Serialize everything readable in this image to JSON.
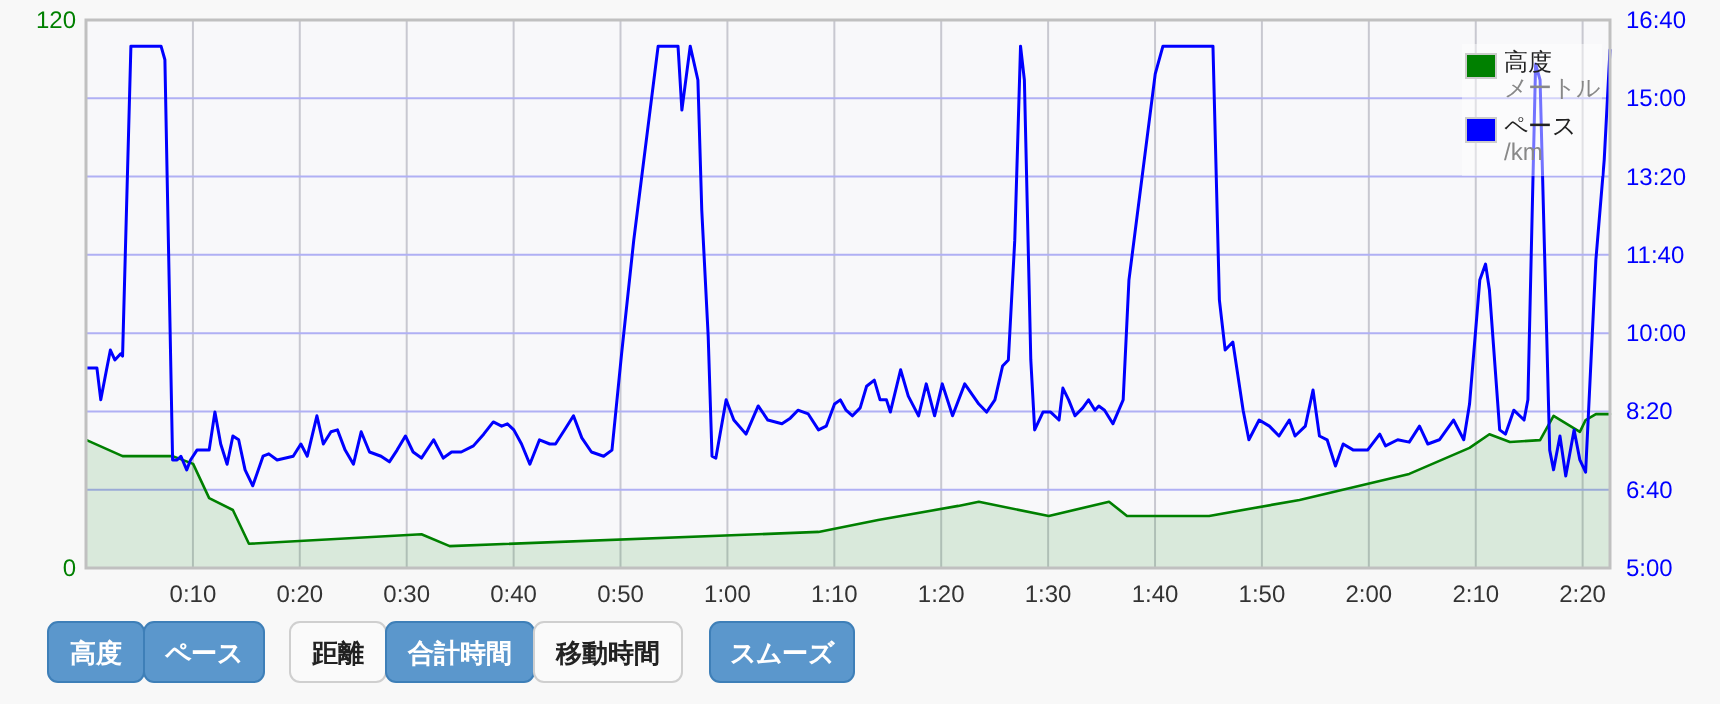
{
  "chart_data": {
    "type": "line",
    "series": [
      {
        "name": "高度",
        "type": "area",
        "color": "#008000",
        "x": [
          0.001,
          0.057,
          0.135,
          0.167,
          0.192,
          0.229,
          0.254,
          0.523,
          0.567,
          1.142,
          1.235,
          1.36,
          1.392,
          1.501,
          1.595,
          1.623,
          1.751,
          1.892,
          2.063,
          2.157,
          2.188,
          2.22,
          2.267,
          2.288,
          2.329,
          2.338,
          2.354,
          2.376
        ],
        "values": [
          28.0,
          24.5,
          24.5,
          22.8,
          15.3,
          12.7,
          5.3,
          7.4,
          4.8,
          7.9,
          10.5,
          13.6,
          14.5,
          11.4,
          14.5,
          11.4,
          11.4,
          14.9,
          20.6,
          26.3,
          29.3,
          27.6,
          28.0,
          33.3,
          29.8,
          32.4,
          33.7,
          33.7
        ]
      },
      {
        "name": "ペース",
        "type": "line",
        "color": "#0000ff",
        "axis": "y2",
        "x": [
          0.001,
          0.017,
          0.023,
          0.032,
          0.038,
          0.045,
          0.054,
          0.057,
          0.07,
          0.117,
          0.123,
          0.135,
          0.142,
          0.148,
          0.157,
          0.163,
          0.173,
          0.182,
          0.192,
          0.201,
          0.21,
          0.22,
          0.229,
          0.238,
          0.248,
          0.26,
          0.276,
          0.285,
          0.298,
          0.323,
          0.335,
          0.345,
          0.36,
          0.37,
          0.382,
          0.392,
          0.404,
          0.417,
          0.429,
          0.442,
          0.46,
          0.473,
          0.485,
          0.498,
          0.51,
          0.523,
          0.542,
          0.557,
          0.57,
          0.585,
          0.604,
          0.62,
          0.635,
          0.648,
          0.657,
          0.667,
          0.679,
          0.692,
          0.707,
          0.723,
          0.732,
          0.748,
          0.76,
          0.773,
          0.788,
          0.807,
          0.82,
          0.835,
          0.854,
          0.892,
          0.923,
          0.929,
          0.942,
          0.954,
          0.96,
          0.97,
          0.976,
          0.982,
          0.998,
          1.01,
          1.029,
          1.048,
          1.063,
          1.085,
          1.098,
          1.11,
          1.126,
          1.142,
          1.154,
          1.167,
          1.176,
          1.185,
          1.195,
          1.207,
          1.217,
          1.229,
          1.238,
          1.248,
          1.254,
          1.27,
          1.282,
          1.298,
          1.31,
          1.323,
          1.335,
          1.351,
          1.37,
          1.392,
          1.404,
          1.417,
          1.429,
          1.438,
          1.448,
          1.457,
          1.463,
          1.473,
          1.479,
          1.492,
          1.504,
          1.517,
          1.523,
          1.532,
          1.542,
          1.554,
          1.563,
          1.573,
          1.579,
          1.588,
          1.601,
          1.617,
          1.626,
          1.667,
          1.679,
          1.757,
          1.767,
          1.776,
          1.788,
          1.804,
          1.813,
          1.829,
          1.845,
          1.86,
          1.876,
          1.885,
          1.901,
          1.913,
          1.923,
          1.935,
          1.948,
          1.96,
          1.976,
          1.998,
          2.017,
          2.026,
          2.045,
          2.063,
          2.079,
          2.092,
          2.11,
          2.132,
          2.148,
          2.157,
          2.173,
          2.182,
          2.188,
          2.204,
          2.213,
          2.226,
          2.242,
          2.248,
          2.26,
          2.267,
          2.282,
          2.288,
          2.298,
          2.307,
          2.32,
          2.329,
          2.338,
          2.354,
          2.367,
          2.376
        ],
        "values": [
          9.26,
          9.26,
          8.58,
          9.22,
          9.64,
          9.43,
          9.56,
          9.51,
          16.11,
          16.11,
          15.82,
          7.3,
          7.3,
          7.38,
          7.09,
          7.3,
          7.51,
          7.51,
          7.51,
          8.32,
          7.64,
          7.21,
          7.81,
          7.73,
          7.09,
          6.75,
          7.38,
          7.43,
          7.3,
          7.38,
          7.64,
          7.38,
          8.24,
          7.64,
          7.9,
          7.94,
          7.51,
          7.21,
          7.9,
          7.47,
          7.38,
          7.26,
          7.51,
          7.81,
          7.47,
          7.34,
          7.73,
          7.34,
          7.47,
          7.47,
          7.6,
          7.85,
          8.11,
          8.02,
          8.07,
          7.94,
          7.64,
          7.21,
          7.73,
          7.64,
          7.64,
          7.98,
          8.24,
          7.77,
          7.47,
          7.38,
          7.51,
          9.56,
          11.98,
          16.11,
          16.11,
          14.75,
          16.11,
          15.39,
          12.62,
          9.94,
          7.38,
          7.34,
          8.58,
          8.15,
          7.85,
          8.45,
          8.15,
          8.07,
          8.19,
          8.36,
          8.28,
          7.94,
          8.02,
          8.49,
          8.58,
          8.36,
          8.24,
          8.41,
          8.87,
          9.0,
          8.58,
          8.58,
          8.32,
          9.22,
          8.66,
          8.24,
          8.92,
          8.24,
          8.92,
          8.24,
          8.92,
          8.49,
          8.32,
          8.58,
          9.3,
          9.43,
          11.98,
          16.11,
          15.39,
          9.43,
          7.94,
          8.32,
          8.32,
          8.15,
          8.83,
          8.58,
          8.24,
          8.41,
          8.58,
          8.36,
          8.45,
          8.36,
          8.07,
          8.58,
          11.13,
          15.52,
          16.11,
          16.11,
          10.71,
          9.64,
          9.81,
          8.36,
          7.73,
          8.15,
          8.02,
          7.81,
          8.15,
          7.81,
          8.02,
          8.79,
          7.81,
          7.73,
          7.17,
          7.64,
          7.51,
          7.51,
          7.85,
          7.6,
          7.73,
          7.68,
          8.02,
          7.64,
          7.73,
          8.15,
          7.73,
          8.49,
          11.13,
          11.47,
          10.92,
          7.94,
          7.85,
          8.36,
          8.15,
          8.58,
          15.73,
          15.39,
          7.51,
          7.09,
          7.81,
          6.96,
          7.94,
          7.3,
          7.04,
          11.56,
          13.69,
          16.03
        ]
      }
    ],
    "xlim": [
      0,
      2.376
    ],
    "xticks": [
      {
        "value": 0.1667,
        "label": "0:10"
      },
      {
        "value": 0.3333,
        "label": "0:20"
      },
      {
        "value": 0.5,
        "label": "0:30"
      },
      {
        "value": 0.6667,
        "label": "0:40"
      },
      {
        "value": 0.8333,
        "label": "0:50"
      },
      {
        "value": 1.0,
        "label": "1:00"
      },
      {
        "value": 1.1667,
        "label": "1:10"
      },
      {
        "value": 1.3333,
        "label": "1:20"
      },
      {
        "value": 1.5,
        "label": "1:30"
      },
      {
        "value": 1.6667,
        "label": "1:40"
      },
      {
        "value": 1.8333,
        "label": "1:50"
      },
      {
        "value": 2.0,
        "label": "2:00"
      },
      {
        "value": 2.1667,
        "label": "2:10"
      },
      {
        "value": 2.3333,
        "label": "2:20"
      }
    ],
    "ylim": [
      0,
      120
    ],
    "yticks": [
      0,
      120
    ],
    "y2lim": [
      5,
      16.667
    ],
    "y2ticks": [
      {
        "value": 5,
        "label": "5:00"
      },
      {
        "value": 6.667,
        "label": "6:40"
      },
      {
        "value": 8.333,
        "label": "8:20"
      },
      {
        "value": 10,
        "label": "10:00"
      },
      {
        "value": 11.667,
        "label": "11:40"
      },
      {
        "value": 13.333,
        "label": "13:20"
      },
      {
        "value": 15,
        "label": "15:00"
      },
      {
        "value": 16.667,
        "label": "16:40"
      }
    ],
    "grid": true,
    "legend": "top right",
    "annotations": [
      "メートル",
      "/km",
      "高度",
      "ペース",
      "距離",
      "合計時間",
      "移動時間",
      "スムーズ"
    ]
  }
}
